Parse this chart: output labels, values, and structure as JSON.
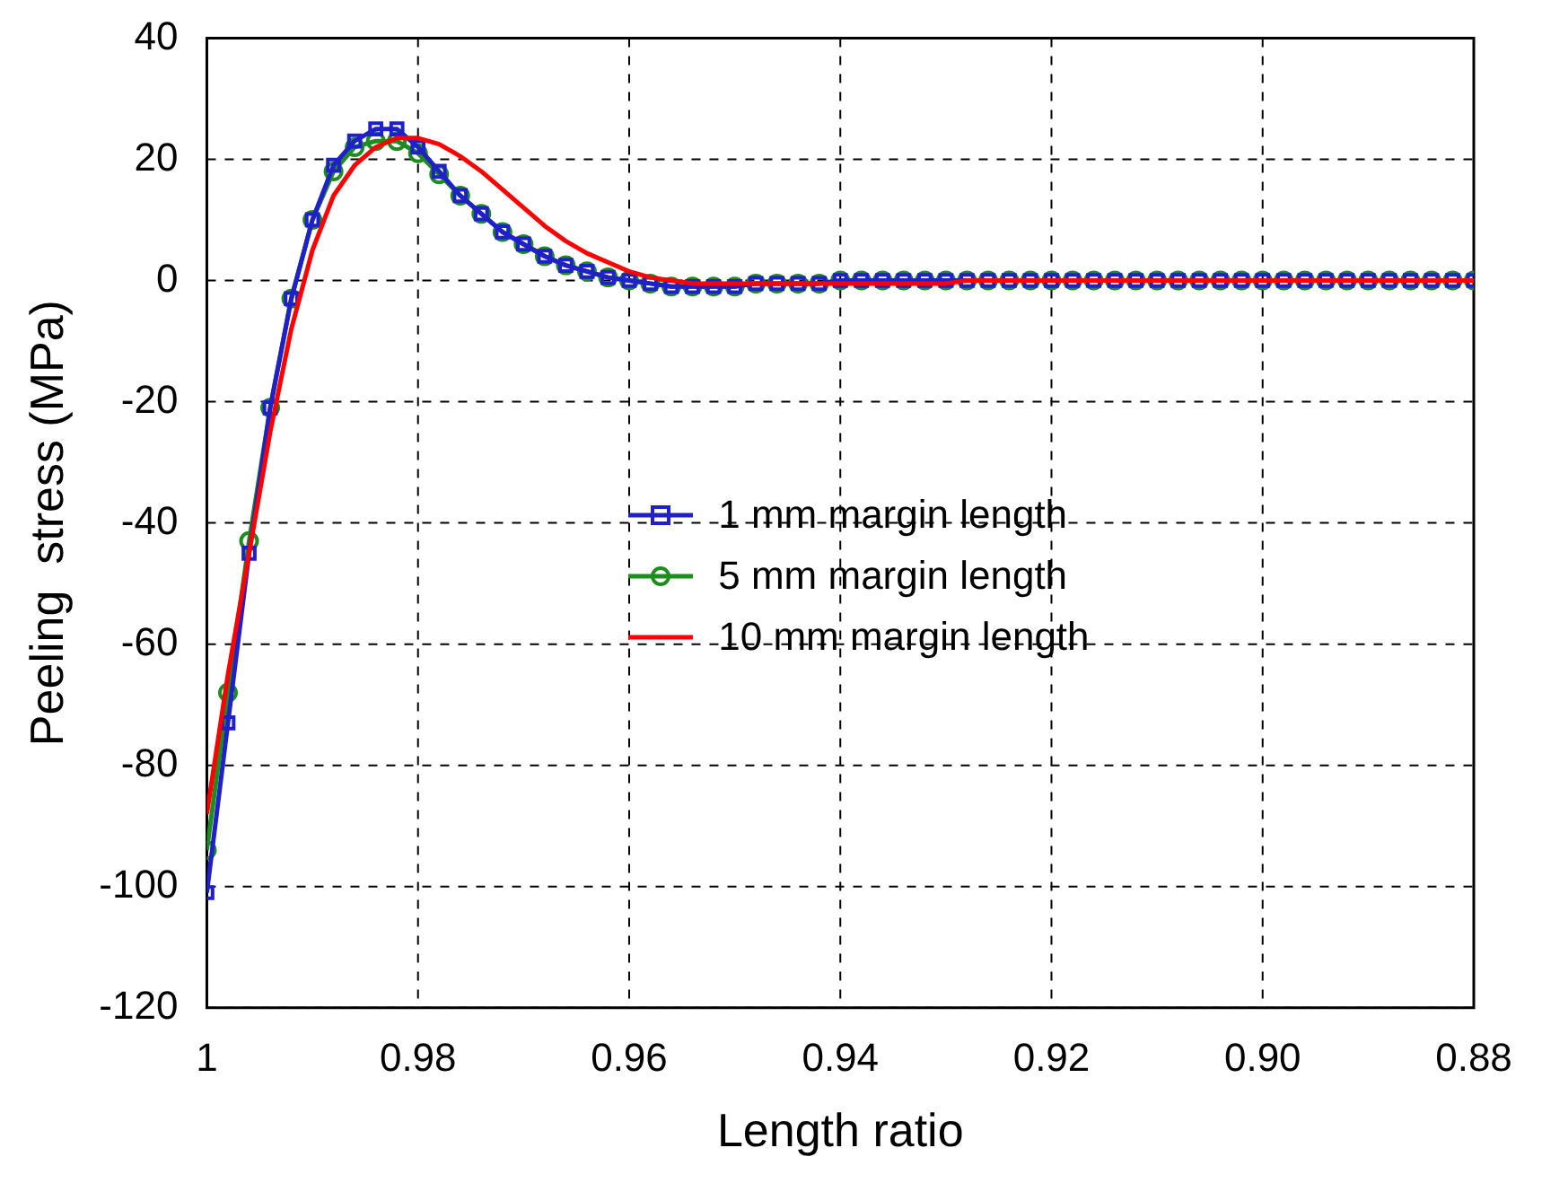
{
  "chart_data": {
    "type": "line",
    "xlabel": "Length ratio",
    "ylabel": "Peeling  stress (MPa)",
    "x": [
      1,
      0.998,
      0.996,
      0.994,
      0.992,
      0.99,
      0.988,
      0.986,
      0.984,
      0.982,
      0.98,
      0.978,
      0.976,
      0.974,
      0.972,
      0.97,
      0.968,
      0.966,
      0.964,
      0.962,
      0.96,
      0.958,
      0.956,
      0.954,
      0.952,
      0.95,
      0.948,
      0.946,
      0.944,
      0.942,
      0.94,
      0.938,
      0.936,
      0.934,
      0.932,
      0.93,
      0.928,
      0.926,
      0.924,
      0.922,
      0.92,
      0.918,
      0.916,
      0.914,
      0.912,
      0.91,
      0.908,
      0.906,
      0.904,
      0.902,
      0.9,
      0.898,
      0.896,
      0.894,
      0.892,
      0.89,
      0.888,
      0.886,
      0.884,
      0.882,
      0.88
    ],
    "xlim": [
      1,
      0.88
    ],
    "xticks": [
      1,
      0.98,
      0.96,
      0.94,
      0.92,
      {
        "value": 0.9,
        "label": "0.90"
      },
      0.88
    ],
    "ylim": [
      -120,
      40
    ],
    "yticks": [
      -120,
      -100,
      -80,
      -60,
      -40,
      -20,
      0,
      20,
      40
    ],
    "grid": true,
    "legend": "right",
    "line_style": "solid",
    "series": [
      {
        "name": "1 mm margin length",
        "color": "#2020c8",
        "marker": "square",
        "values": [
          -101,
          -73,
          -45,
          -21,
          -3,
          10,
          19,
          23,
          25,
          25,
          22,
          18,
          14,
          11,
          8,
          6,
          4,
          2.5,
          1.5,
          0.5,
          0,
          -0.5,
          -1,
          -1,
          -1,
          -1,
          -0.5,
          -0.5,
          -0.5,
          -0.5,
          0,
          0,
          0,
          0,
          0,
          0,
          0,
          0,
          0,
          0,
          0,
          0,
          0,
          0,
          0,
          0,
          0,
          0,
          0,
          0,
          0,
          0,
          0,
          0,
          0,
          0,
          0,
          0,
          0,
          0,
          0
        ]
      },
      {
        "name": "5 mm margin length",
        "color": "#1e8c1e",
        "marker": "circle",
        "values": [
          -94,
          -68,
          -43,
          -21,
          -3,
          10,
          18,
          22,
          23,
          23,
          21,
          17.5,
          14,
          11,
          8,
          6,
          4,
          2.5,
          1.5,
          0.5,
          0,
          -0.5,
          -1,
          -1,
          -1,
          -1,
          -0.5,
          -0.5,
          -0.5,
          -0.5,
          0,
          0,
          0,
          0,
          0,
          0,
          0,
          0,
          0,
          0,
          0,
          0,
          0,
          0,
          0,
          0,
          0,
          0,
          0,
          0,
          0,
          0,
          0,
          0,
          0,
          0,
          0,
          0,
          0,
          0,
          0
        ]
      },
      {
        "name": "10 mm margin length",
        "color": "#ff0000",
        "marker": "none",
        "values": [
          -88,
          -65,
          -45,
          -25,
          -8,
          5,
          14,
          19,
          22,
          23.5,
          23.5,
          22.5,
          20.5,
          18,
          15,
          12,
          9,
          6.5,
          4.5,
          3,
          1.5,
          0.5,
          0,
          -0.5,
          -0.5,
          -0.5,
          -0.5,
          -0.5,
          -0.5,
          -0.5,
          -0.5,
          -0.5,
          -0.5,
          -0.5,
          -0.5,
          -0.5,
          0,
          0,
          0,
          0,
          0,
          0,
          0,
          0,
          0,
          0,
          0,
          0,
          0,
          0,
          0,
          0,
          0,
          0,
          0,
          0,
          0,
          0,
          0,
          0,
          0
        ]
      }
    ]
  }
}
